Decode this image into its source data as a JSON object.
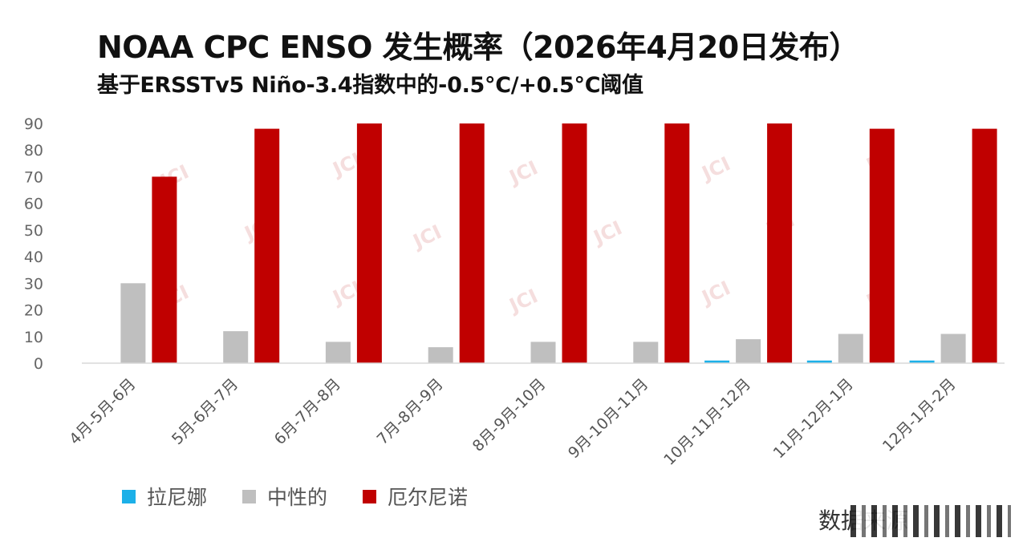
{
  "title": "NOAA CPC ENSO 发生概率（2026年4月20日发布）",
  "subtitle": "基于ERSSTv5 Niño-3.4指数中的-0.5°C/+0.5°C阈值",
  "source_label": "数据来源",
  "watermark_text": "JCI",
  "chart_data": {
    "type": "bar",
    "categories": [
      "4月-5月-6月",
      "5月-6月-7月",
      "6月-7月-8月",
      "7月-8月-9月",
      "8月-9月-10月",
      "9月-10月-11月",
      "10月-11月-12月",
      "11月-12月-1月",
      "12月-1月-2月"
    ],
    "series": [
      {
        "name": "拉尼娜",
        "color": "#1cb0e8",
        "values": [
          0,
          0,
          0,
          0,
          0,
          0,
          1,
          1,
          1
        ]
      },
      {
        "name": "中性的",
        "color": "#bfbfbf",
        "values": [
          30,
          12,
          8,
          6,
          8,
          8,
          9,
          11,
          11
        ]
      },
      {
        "name": "厄尔尼诺",
        "color": "#c00000",
        "values": [
          70,
          88,
          90,
          90,
          90,
          90,
          90,
          88,
          88
        ]
      }
    ],
    "yticks": [
      0,
      10,
      20,
      30,
      40,
      50,
      60,
      70,
      80,
      90
    ],
    "ylim": [
      0,
      90
    ],
    "grid": false,
    "legend_position": "bottom-left"
  }
}
